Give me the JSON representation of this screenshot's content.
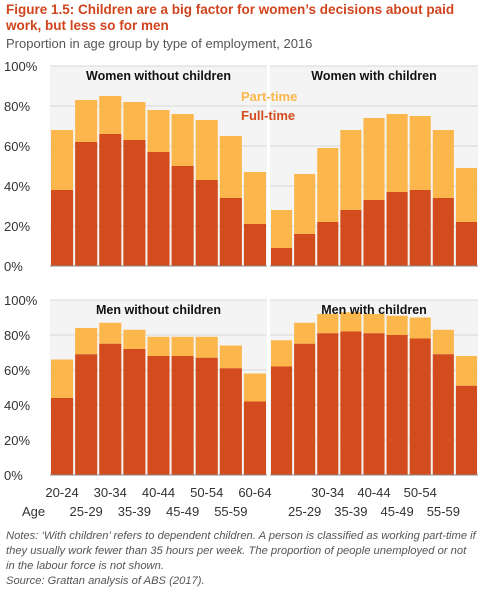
{
  "figure": {
    "title": "Figure 1.5: Children are a big factor for women’s decisions about paid work, but less so for men",
    "subtitle": "Proportion in age group by type of employment, 2016",
    "notes": "Notes: ‘With children’ refers to dependent children. A person is classified as working part-time if they usually work fewer than 35 hours per week. The proportion of people unemployed or not in the labour force is not shown.",
    "source": "Source: Grattan analysis of ABS (2017)."
  },
  "colors": {
    "full_time": "#d24c1e",
    "part_time": "#fbb74b",
    "title": "#d0441e",
    "text": "#333333",
    "grid": "#d9d9d9",
    "panel_bg": "#f4f4f4"
  },
  "chart_data": {
    "type": "bar",
    "stacked": true,
    "categories": [
      "20-24",
      "25-29",
      "30-34",
      "35-39",
      "40-44",
      "45-49",
      "50-54",
      "55-59",
      "60-64"
    ],
    "axis_label": "Age",
    "ylim": [
      0,
      100
    ],
    "yticks": [
      "0%",
      "20%",
      "40%",
      "60%",
      "80%",
      "100%"
    ],
    "legend": [
      "Part-time",
      "Full-time"
    ],
    "panels": [
      {
        "title": "Women without children",
        "yticks": [
          "0%",
          "20%",
          "40%",
          "60%",
          "80%",
          "100%"
        ],
        "series": [
          {
            "name": "Full-time",
            "values": [
              38,
              62,
              66,
              63,
              57,
              50,
              43,
              34,
              21
            ]
          },
          {
            "name": "Part-time",
            "values": [
              30,
              21,
              19,
              19,
              21,
              26,
              30,
              31,
              26
            ]
          }
        ]
      },
      {
        "title": "Women with children",
        "yticks": [],
        "series": [
          {
            "name": "Full-time",
            "values": [
              9,
              16,
              22,
              28,
              33,
              37,
              38,
              34,
              22
            ]
          },
          {
            "name": "Part-time",
            "values": [
              19,
              30,
              37,
              40,
              41,
              39,
              37,
              34,
              27
            ]
          }
        ]
      },
      {
        "title": "Men without children",
        "yticks": [
          "0%",
          "20%",
          "40%",
          "60%",
          "80%",
          "100%"
        ],
        "series": [
          {
            "name": "Full-time",
            "values": [
              44,
              69,
              75,
              72,
              68,
              68,
              67,
              61,
              42
            ]
          },
          {
            "name": "Part-time",
            "values": [
              22,
              15,
              12,
              11,
              11,
              11,
              12,
              13,
              16
            ]
          }
        ]
      },
      {
        "title": "Men with children",
        "yticks": [],
        "series": [
          {
            "name": "Full-time",
            "values": [
              62,
              75,
              81,
              82,
              81,
              80,
              78,
              69,
              51
            ]
          },
          {
            "name": "Part-time",
            "values": [
              15,
              12,
              11,
              11,
              11,
              11,
              12,
              14,
              17
            ]
          }
        ]
      }
    ]
  }
}
